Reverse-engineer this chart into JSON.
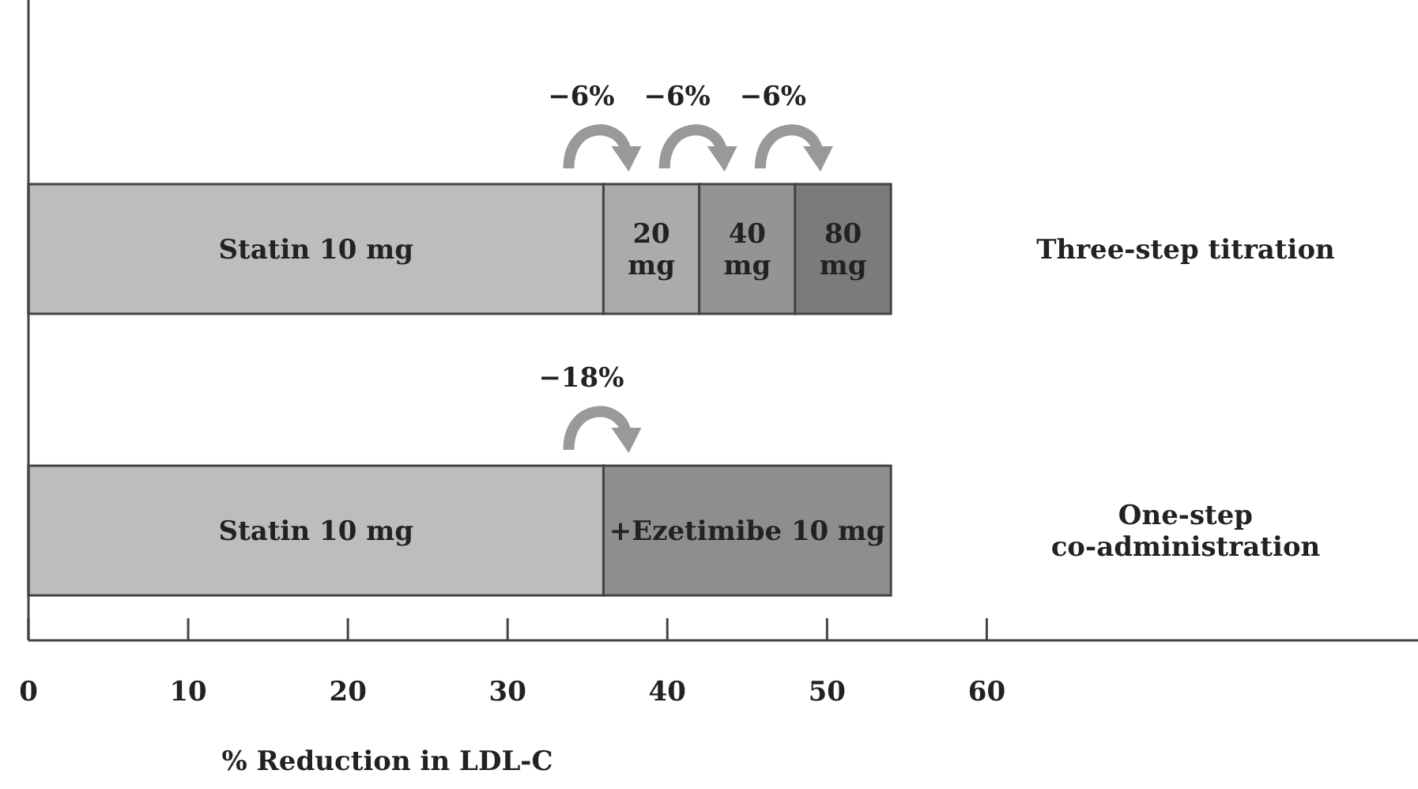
{
  "chart_data": {
    "type": "bar",
    "orientation": "horizontal",
    "stacked": true,
    "categories": [
      "Three-step titration",
      "One-step co-administration"
    ],
    "series": [
      {
        "name": "Statin 10 mg",
        "color": "#bdbdbd",
        "values": [
          36,
          36
        ]
      },
      {
        "name": "20 mg",
        "color": "#ababab",
        "values": [
          6,
          null
        ]
      },
      {
        "name": "40 mg",
        "color": "#949494",
        "values": [
          6,
          null
        ]
      },
      {
        "name": "80 mg",
        "color": "#7b7b7b",
        "values": [
          6,
          null
        ]
      },
      {
        "name": "+Ezetimibe 10 mg",
        "color": "#8e8e8e",
        "values": [
          null,
          18
        ]
      }
    ],
    "xlabel": "% Reduction in LDL-C",
    "xlim": [
      0,
      87
    ],
    "xticks": [
      0,
      10,
      20,
      30,
      40,
      50,
      60
    ],
    "legend": false,
    "annotations": [
      "−6%",
      "−6%",
      "−6%",
      "−18%"
    ]
  }
}
